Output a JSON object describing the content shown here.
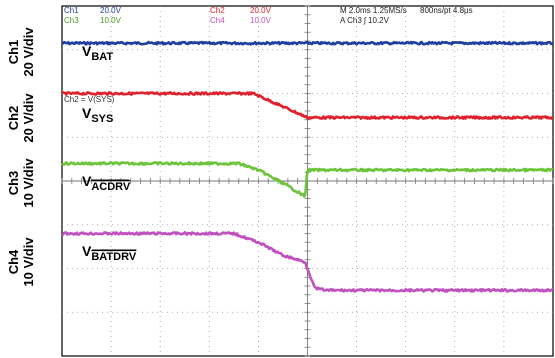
{
  "header": {
    "ch1": {
      "name": "Ch1",
      "scale": "20.0V",
      "color": "#1f3fa0"
    },
    "ch2": {
      "name": "Ch2",
      "scale": "20.0V",
      "color": "#e0202a"
    },
    "ch3": {
      "name": "Ch3",
      "scale": "10.0V",
      "color": "#6cc43a"
    },
    "ch4": {
      "name": "Ch4",
      "scale": "10.0V",
      "color": "#c050c0"
    },
    "timebase": "M 2.0ms 1.25MS/s",
    "record": "800ns/pt 4.8µs",
    "trigger": "A  Ch3  ʃ  10.2V"
  },
  "axis_labels": {
    "ch1": "Ch1",
    "ch1_scale": "20 V/div",
    "ch2": "Ch2",
    "ch2_scale": "20 V/div",
    "ch3": "Ch3",
    "ch3_scale": "10 V/div",
    "ch4": "Ch4",
    "ch4_scale": "10 V/div"
  },
  "chart_data": {
    "type": "line",
    "x_unit": "div",
    "y_unit": "div",
    "xlim": [
      0,
      10
    ],
    "ylim": [
      0,
      8
    ],
    "grid": true,
    "series": [
      {
        "name": "BAT",
        "label_main": "V",
        "label_sub": "BAT",
        "overline": false,
        "color": "#1f3fa0",
        "points": [
          [
            0,
            7.15
          ],
          [
            10,
            7.15
          ]
        ]
      },
      {
        "name": "SYS",
        "label_main": "V",
        "label_sub": "SYS",
        "overline": false,
        "color": "#e0202a",
        "points": [
          [
            0,
            6.0
          ],
          [
            3.9,
            6.0
          ],
          [
            4.3,
            5.8
          ],
          [
            4.8,
            5.55
          ],
          [
            5.0,
            5.45
          ],
          [
            10,
            5.45
          ]
        ]
      },
      {
        "name": "ACDRV",
        "label_main": "V",
        "label_sub": "ACDRV",
        "overline": true,
        "color": "#6cc43a",
        "points": [
          [
            0,
            4.4
          ],
          [
            3.6,
            4.4
          ],
          [
            4.0,
            4.25
          ],
          [
            4.5,
            3.95
          ],
          [
            4.95,
            3.65
          ],
          [
            5.0,
            4.25
          ],
          [
            10,
            4.25
          ]
        ]
      },
      {
        "name": "BATDRV",
        "label_main": "V",
        "label_sub": "BATDRV",
        "overline": true,
        "color": "#c050c0",
        "points": [
          [
            0,
            2.8
          ],
          [
            3.5,
            2.8
          ],
          [
            4.0,
            2.6
          ],
          [
            4.5,
            2.3
          ],
          [
            4.95,
            2.15
          ],
          [
            5.15,
            1.55
          ],
          [
            5.4,
            1.5
          ],
          [
            10,
            1.5
          ]
        ]
      }
    ],
    "annotations": [
      {
        "text": "Ch2 = V(SYS)"
      }
    ]
  }
}
